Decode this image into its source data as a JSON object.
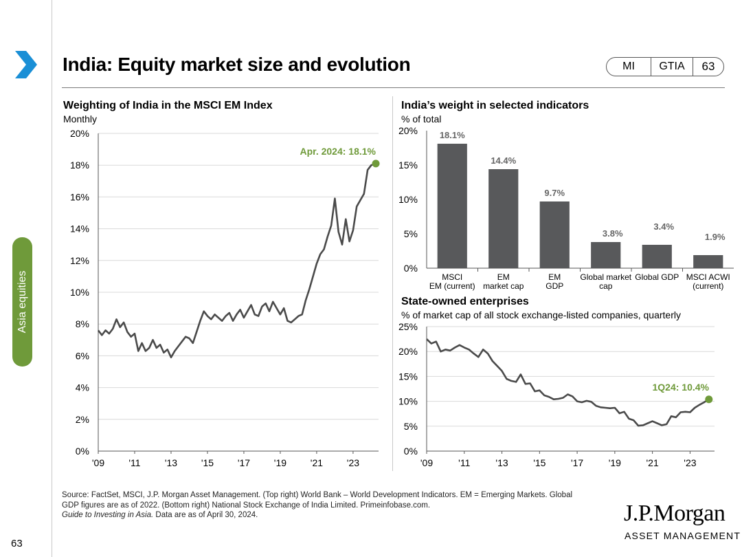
{
  "header": {
    "title": "India: Equity market size and evolution",
    "badge": [
      "MI",
      "GTIA",
      "63"
    ]
  },
  "sidebar": {
    "section_label": "Asia equities"
  },
  "footer": {
    "page_number": "63",
    "source_line1": "Source: FactSet, MSCI, J.P. Morgan Asset Management. (Top right) World Bank – World Development Indicators. EM = Emerging Markets. Global",
    "source_line2": "GDP figures are as of 2022. (Bottom right) National Stock Exchange of India Limited. Primeinfobase.com.",
    "guide_title": "Guide to Investing in Asia.",
    "guide_rest": " Data are as of April 30, 2024.",
    "logo_name": "J.P.Morgan",
    "logo_sub": "ASSET MANAGEMENT"
  },
  "colors": {
    "accent": "#6f9a3a",
    "line": "#4a4a4a",
    "bar": "#58595b",
    "grid": "#d9d9d9"
  },
  "chart_data": [
    {
      "id": "msci_weight",
      "type": "line",
      "title": "Weighting of India in the MSCI EM Index",
      "subtitle": "Monthly",
      "ylim": [
        0,
        20
      ],
      "yticks": [
        0,
        2,
        4,
        6,
        8,
        10,
        12,
        14,
        16,
        18,
        20
      ],
      "ytick_labels": [
        "0%",
        "2%",
        "4%",
        "6%",
        "8%",
        "10%",
        "12%",
        "14%",
        "16%",
        "18%",
        "20%"
      ],
      "xlim": [
        2009,
        2024.4
      ],
      "xticks": [
        2009,
        2011,
        2013,
        2015,
        2017,
        2019,
        2021,
        2023
      ],
      "xtick_labels": [
        "'09",
        "'11",
        "'13",
        "'15",
        "'17",
        "'19",
        "'21",
        "'23"
      ],
      "annotation": "Apr. 2024: 18.1%",
      "x": [
        2009.0,
        2009.2,
        2009.4,
        2009.6,
        2009.8,
        2010.0,
        2010.2,
        2010.4,
        2010.6,
        2010.8,
        2011.0,
        2011.2,
        2011.4,
        2011.6,
        2011.8,
        2012.0,
        2012.2,
        2012.4,
        2012.6,
        2012.8,
        2013.0,
        2013.2,
        2013.4,
        2013.6,
        2013.8,
        2014.0,
        2014.2,
        2014.4,
        2014.6,
        2014.8,
        2015.0,
        2015.2,
        2015.4,
        2015.6,
        2015.8,
        2016.0,
        2016.2,
        2016.4,
        2016.6,
        2016.8,
        2017.0,
        2017.2,
        2017.4,
        2017.6,
        2017.8,
        2018.0,
        2018.2,
        2018.4,
        2018.6,
        2018.8,
        2019.0,
        2019.2,
        2019.4,
        2019.6,
        2019.8,
        2020.0,
        2020.2,
        2020.4,
        2020.6,
        2020.8,
        2021.0,
        2021.2,
        2021.4,
        2021.6,
        2021.8,
        2022.0,
        2022.2,
        2022.4,
        2022.6,
        2022.8,
        2023.0,
        2023.2,
        2023.4,
        2023.6,
        2023.8,
        2024.0,
        2024.25
      ],
      "y": [
        7.6,
        7.3,
        7.6,
        7.4,
        7.7,
        8.3,
        7.8,
        8.1,
        7.5,
        7.2,
        7.4,
        6.3,
        6.8,
        6.3,
        6.5,
        7.0,
        6.5,
        6.7,
        6.2,
        6.4,
        5.9,
        6.3,
        6.6,
        6.9,
        7.2,
        7.1,
        6.8,
        7.5,
        8.2,
        8.8,
        8.5,
        8.3,
        8.6,
        8.4,
        8.2,
        8.5,
        8.7,
        8.2,
        8.6,
        8.9,
        8.4,
        8.8,
        9.2,
        8.6,
        8.5,
        9.1,
        9.3,
        8.8,
        9.4,
        9.0,
        8.6,
        9.0,
        8.2,
        8.1,
        8.3,
        8.5,
        8.6,
        9.5,
        10.2,
        11.0,
        11.8,
        12.4,
        12.7,
        13.5,
        14.2,
        15.9,
        13.8,
        13.0,
        14.6,
        13.2,
        13.9,
        15.4,
        15.8,
        16.2,
        17.7,
        18.0,
        18.1
      ]
    },
    {
      "id": "selected_indicators",
      "type": "bar",
      "title": "India’s weight in selected indicators",
      "subtitle": "% of total",
      "ylim": [
        0,
        20
      ],
      "yticks": [
        0,
        5,
        10,
        15,
        20
      ],
      "ytick_labels": [
        "0%",
        "5%",
        "10%",
        "15%",
        "20%"
      ],
      "categories": [
        [
          "MSCI",
          "EM (current)"
        ],
        [
          "EM",
          "market cap"
        ],
        [
          "EM",
          "GDP"
        ],
        [
          "Global market",
          "cap"
        ],
        [
          "Global GDP"
        ],
        [
          "MSCI ACWI",
          "(current)"
        ]
      ],
      "values": [
        18.1,
        14.4,
        9.7,
        3.8,
        3.4,
        1.9
      ],
      "labels": [
        "18.1%",
        "14.4%",
        "9.7%",
        "3.8%",
        "3.4%",
        "1.9%"
      ]
    },
    {
      "id": "soe",
      "type": "line",
      "title": "State-owned enterprises",
      "subtitle": "% of market cap of all stock exchange-listed companies, quarterly",
      "ylim": [
        0,
        25
      ],
      "yticks": [
        0,
        5,
        10,
        15,
        20,
        25
      ],
      "ytick_labels": [
        "0%",
        "5%",
        "10%",
        "15%",
        "20%",
        "25%"
      ],
      "xlim": [
        2009,
        2024.3
      ],
      "xticks": [
        2009,
        2011,
        2013,
        2015,
        2017,
        2019,
        2021,
        2023
      ],
      "xtick_labels": [
        "'09",
        "'11",
        "'13",
        "'15",
        "'17",
        "'19",
        "'21",
        "'23"
      ],
      "annotation": "1Q24: 10.4%",
      "x": [
        2009.0,
        2009.25,
        2009.5,
        2009.75,
        2010.0,
        2010.25,
        2010.5,
        2010.75,
        2011.0,
        2011.25,
        2011.5,
        2011.75,
        2012.0,
        2012.25,
        2012.5,
        2012.75,
        2013.0,
        2013.25,
        2013.5,
        2013.75,
        2014.0,
        2014.25,
        2014.5,
        2014.75,
        2015.0,
        2015.25,
        2015.5,
        2015.75,
        2016.0,
        2016.25,
        2016.5,
        2016.75,
        2017.0,
        2017.25,
        2017.5,
        2017.75,
        2018.0,
        2018.25,
        2018.5,
        2018.75,
        2019.0,
        2019.25,
        2019.5,
        2019.75,
        2020.0,
        2020.25,
        2020.5,
        2020.75,
        2021.0,
        2021.25,
        2021.5,
        2021.75,
        2022.0,
        2022.25,
        2022.5,
        2022.75,
        2023.0,
        2023.25,
        2023.5,
        2023.75,
        2024.0
      ],
      "y": [
        22.5,
        21.6,
        22.0,
        20.0,
        20.4,
        20.2,
        20.8,
        21.3,
        20.8,
        20.4,
        19.6,
        18.9,
        20.4,
        19.6,
        18.1,
        17.1,
        16.1,
        14.5,
        14.1,
        13.9,
        15.4,
        13.5,
        13.6,
        12.0,
        12.2,
        11.2,
        10.9,
        10.4,
        10.5,
        10.7,
        11.4,
        11.0,
        10.0,
        9.8,
        10.1,
        9.9,
        9.1,
        8.8,
        8.7,
        8.6,
        8.7,
        7.6,
        7.9,
        6.5,
        6.2,
        5.1,
        5.2,
        5.6,
        6.0,
        5.6,
        5.2,
        5.4,
        7.0,
        6.8,
        7.8,
        7.9,
        7.8,
        8.7,
        9.3,
        9.8,
        10.4
      ]
    }
  ]
}
